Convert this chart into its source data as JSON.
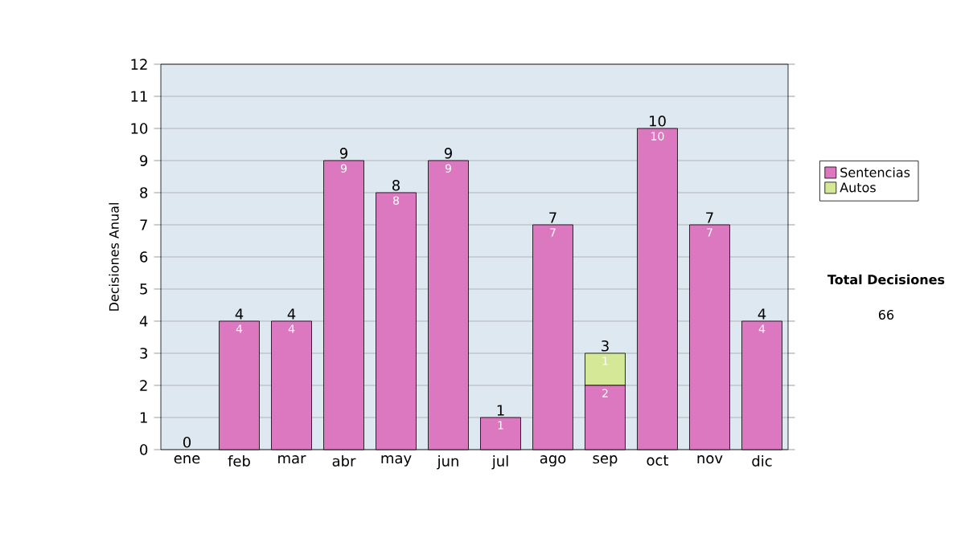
{
  "chart_data": {
    "type": "bar",
    "stacked": true,
    "ylabel": "Decisiones Anual",
    "categories": [
      "ene",
      "feb",
      "mar",
      "abr",
      "may",
      "jun",
      "jul",
      "ago",
      "sep",
      "oct",
      "nov",
      "dic"
    ],
    "series": [
      {
        "name": "Sentencias",
        "color": "#dc78c0",
        "values": [
          0,
          4,
          4,
          9,
          8,
          9,
          1,
          7,
          2,
          10,
          7,
          4
        ],
        "value_labels": [
          null,
          "4",
          "4",
          "9",
          "8",
          "9",
          "1",
          "7",
          "2",
          "10",
          "7",
          "4"
        ]
      },
      {
        "name": "Autos",
        "color": "#d4e898",
        "values": [
          0,
          0,
          0,
          0,
          0,
          0,
          0,
          0,
          1,
          0,
          0,
          0
        ],
        "value_labels": [
          null,
          null,
          null,
          null,
          null,
          null,
          null,
          null,
          "1",
          null,
          null,
          null
        ]
      }
    ],
    "totals": [
      "0",
      "4",
      "4",
      "9",
      "8",
      "9",
      "1",
      "7",
      "3",
      "10",
      "7",
      "4"
    ],
    "ylim": [
      0,
      12
    ],
    "yticks": [
      0,
      1,
      2,
      3,
      4,
      5,
      6,
      7,
      8,
      9,
      10,
      11,
      12
    ],
    "grid": "y",
    "legend": "right",
    "annotations": [
      "Total Decisiones",
      "66"
    ]
  }
}
